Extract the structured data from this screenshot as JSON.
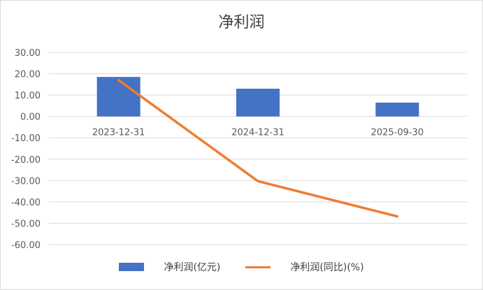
{
  "chart_data": {
    "type": "bar+line",
    "title": "净利润",
    "categories": [
      "2023-12-31",
      "2024-12-31",
      "2025-09-30"
    ],
    "series": [
      {
        "name": "净利润(亿元)",
        "type": "bar",
        "values": [
          18.5,
          13.0,
          6.5
        ],
        "color": "#4472c4"
      },
      {
        "name": "净利润(同比)(%)",
        "type": "line",
        "values": [
          17.0,
          -30.3,
          -46.8
        ],
        "color": "#ed7d31"
      }
    ],
    "y_ticks": [
      "30.00",
      "20.00",
      "10.00",
      "0.00",
      "-10.00",
      "-20.00",
      "-30.00",
      "-40.00",
      "-50.00",
      "-60.00"
    ],
    "ylim": [
      -60,
      30
    ],
    "grid": true,
    "legend_position": "bottom"
  }
}
